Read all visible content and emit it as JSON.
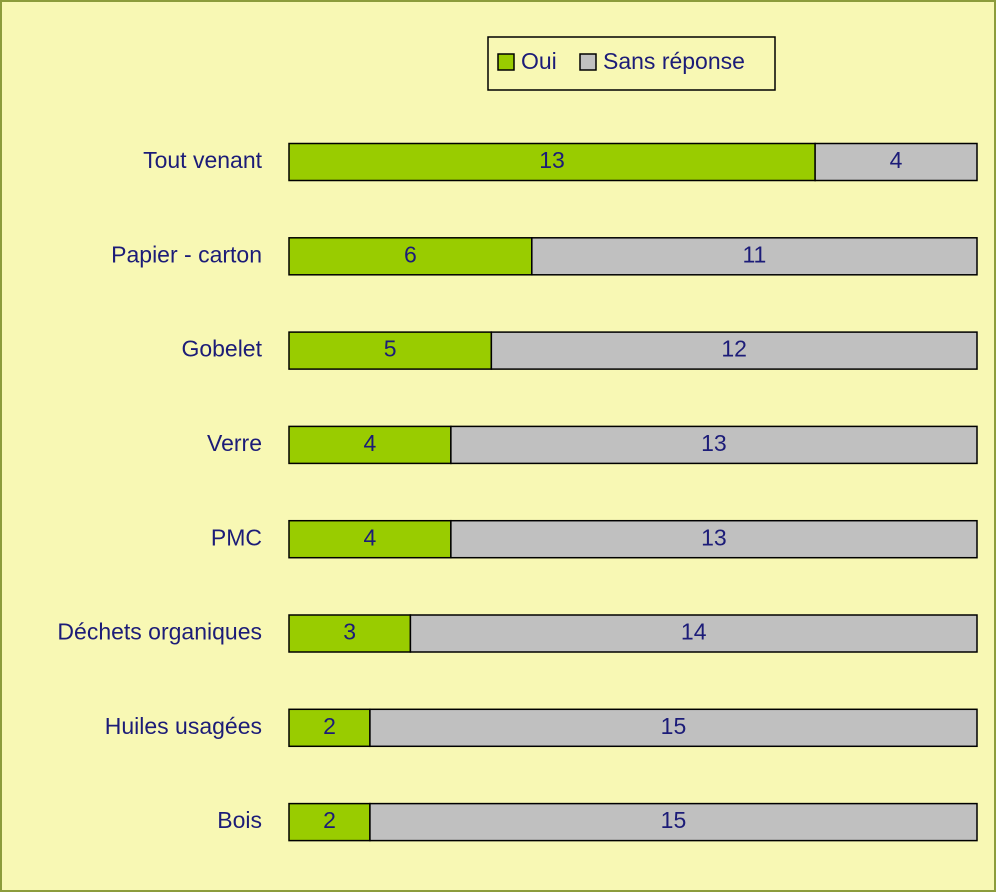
{
  "chart_data": {
    "type": "stacked-barh",
    "categories": [
      "Tout venant",
      "Papier - carton",
      "Gobelet",
      "Verre",
      "PMC",
      "Déchets organiques",
      "Huiles usagées",
      "Bois"
    ],
    "series": [
      {
        "name": "Oui",
        "color": "#99cc00",
        "values": [
          13,
          6,
          5,
          4,
          4,
          3,
          2,
          2
        ]
      },
      {
        "name": "Sans réponse",
        "color": "#c0c0c0",
        "values": [
          4,
          11,
          12,
          13,
          13,
          14,
          15,
          15
        ]
      }
    ],
    "legend": "top"
  }
}
